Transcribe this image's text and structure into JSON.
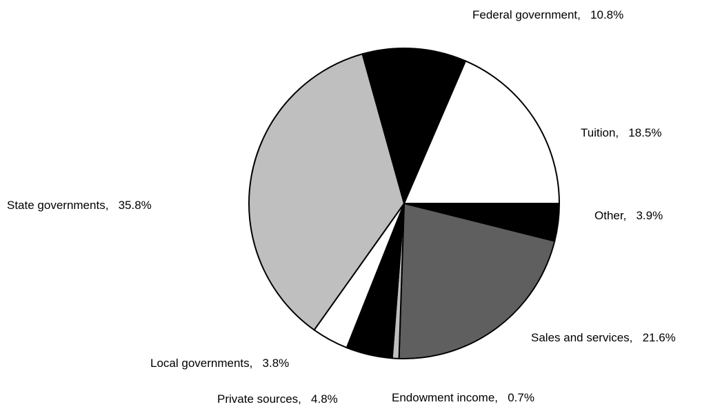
{
  "chart_data": {
    "type": "pie",
    "title": "",
    "start": "right-horizontal",
    "direction": "clockwise",
    "slices": [
      {
        "label": "Other",
        "value": 3.9,
        "value_text": "3.9%",
        "color": "#000000"
      },
      {
        "label": "Sales and services",
        "value": 21.6,
        "value_text": "21.6%",
        "color": "#5f5f5f"
      },
      {
        "label": "Endowment income",
        "value": 0.7,
        "value_text": "0.7%",
        "color": "#bfbfbf"
      },
      {
        "label": "Private sources",
        "value": 4.8,
        "value_text": "4.8%",
        "color": "#000000"
      },
      {
        "label": "Local governments",
        "value": 3.8,
        "value_text": "3.8%",
        "color": "#ffffff"
      },
      {
        "label": "State governments",
        "value": 35.8,
        "value_text": "35.8%",
        "color": "#bfbfbf"
      },
      {
        "label": "Federal government",
        "value": 10.8,
        "value_text": "10.8%",
        "color": "#000000"
      },
      {
        "label": "Tuition",
        "value": 18.5,
        "value_text": "18.5%",
        "color": "#ffffff"
      }
    ]
  }
}
